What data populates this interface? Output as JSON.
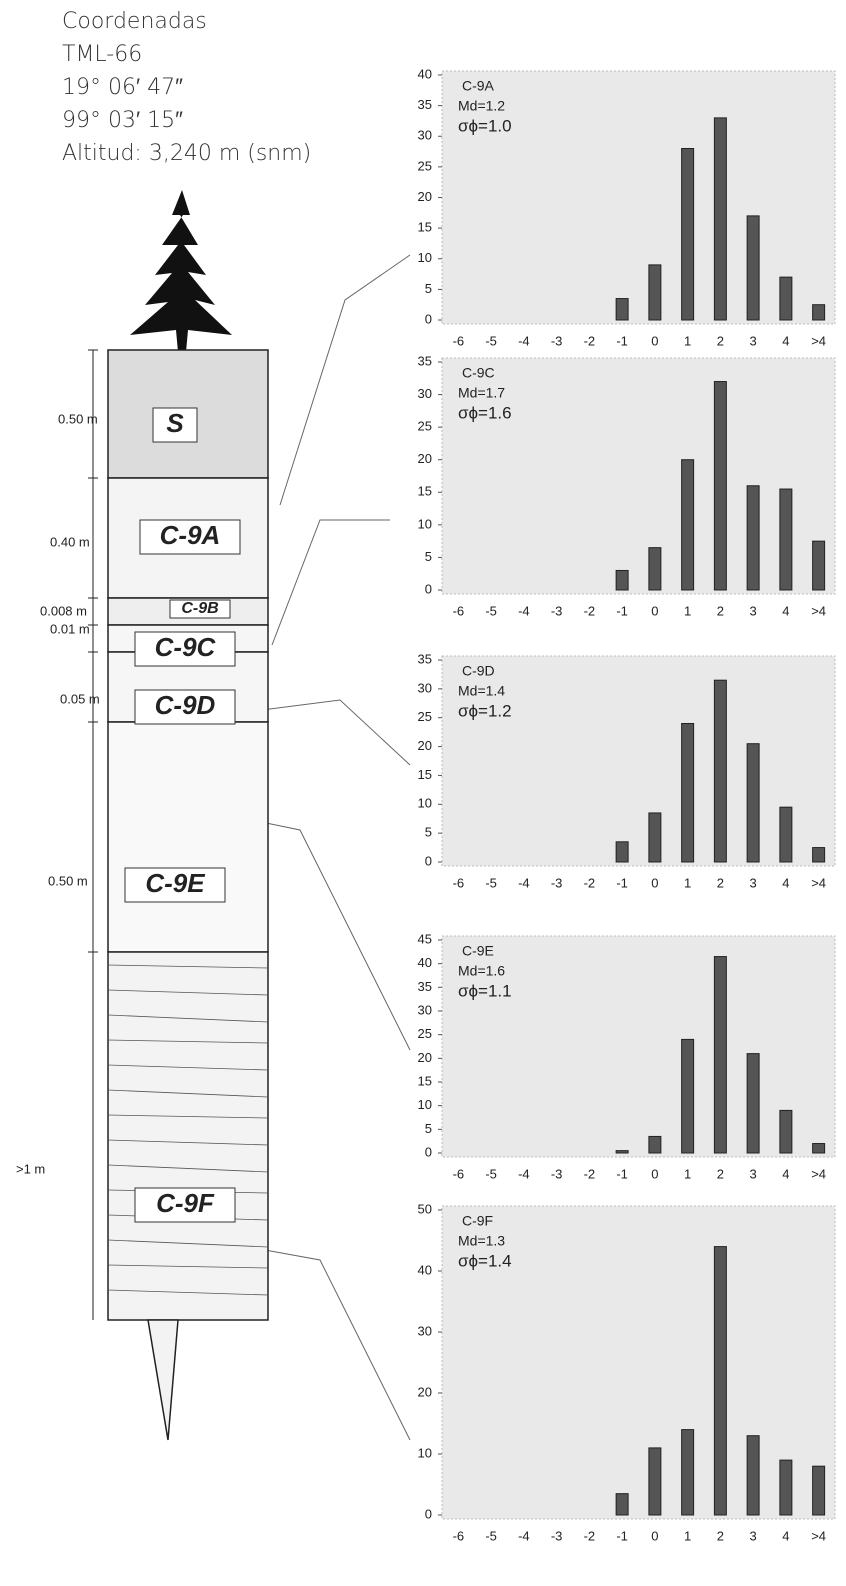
{
  "header": {
    "lines": [
      "Coordenadas",
      "TML-66",
      "19° 06′ 47″",
      "99° 03′ 15″",
      "Altitud: 3,240 m (snm)"
    ]
  },
  "column": {
    "layers": [
      {
        "label": "S",
        "thickness": "0.50 m"
      },
      {
        "label": "C-9A",
        "thickness": "0.40 m"
      },
      {
        "label": "C-9B",
        "thickness": "0.008 m"
      },
      {
        "label": "C-9C",
        "thickness": "0.01 m"
      },
      {
        "label": "C-9D",
        "thickness": "0.05 m"
      },
      {
        "label": "C-9E",
        "thickness": "0.50  m"
      },
      {
        "label": "C-9F",
        "thickness": ">1 m"
      }
    ]
  },
  "chart_data": [
    {
      "type": "bar",
      "title": "C-9A",
      "annotations": [
        "Md=1.2",
        "σϕ=1.0"
      ],
      "color": "#555555",
      "categories": [
        "-6",
        "-5",
        "-4",
        "-3",
        "-2",
        "-1",
        "0",
        "1",
        "2",
        "3",
        "4",
        ">4"
      ],
      "values": [
        0,
        0,
        0,
        0,
        0,
        3.5,
        9,
        28,
        33,
        17,
        7,
        2.5
      ],
      "ylim": [
        0,
        40
      ],
      "yticks": [
        0,
        5,
        10,
        15,
        20,
        25,
        30,
        35,
        40
      ]
    },
    {
      "type": "bar",
      "title": "C-9C",
      "annotations": [
        "Md=1.7",
        "σϕ=1.6"
      ],
      "color": "#555555",
      "categories": [
        "-6",
        "-5",
        "-4",
        "-3",
        "-2",
        "-1",
        "0",
        "1",
        "2",
        "3",
        "4",
        ">4"
      ],
      "values": [
        0,
        0,
        0,
        0,
        0,
        3,
        6.5,
        20,
        32,
        16,
        15.5,
        7.5
      ],
      "ylim": [
        0,
        35
      ],
      "yticks": [
        0,
        5,
        10,
        15,
        20,
        25,
        30,
        35
      ]
    },
    {
      "type": "bar",
      "title": "C-9D",
      "annotations": [
        "Md=1.4",
        "σϕ=1.2"
      ],
      "color": "#555555",
      "categories": [
        "-6",
        "-5",
        "-4",
        "-3",
        "-2",
        "-1",
        "0",
        "1",
        "2",
        "3",
        "4",
        ">4"
      ],
      "values": [
        0,
        0,
        0,
        0,
        0,
        3.5,
        8.5,
        24,
        31.5,
        20.5,
        9.5,
        2.5
      ],
      "ylim": [
        0,
        35
      ],
      "yticks": [
        0,
        5,
        10,
        15,
        20,
        25,
        30,
        35
      ]
    },
    {
      "type": "bar",
      "title": "C-9E",
      "annotations": [
        "Md=1.6",
        "σϕ=1.1"
      ],
      "color": "#555555",
      "categories": [
        "-6",
        "-5",
        "-4",
        "-3",
        "-2",
        "-1",
        "0",
        "1",
        "2",
        "3",
        "4",
        ">4"
      ],
      "values": [
        0,
        0,
        0,
        0,
        0,
        0.5,
        3.5,
        24,
        41.5,
        21,
        9,
        2
      ],
      "ylim": [
        0,
        45
      ],
      "yticks": [
        0,
        5,
        10,
        15,
        20,
        25,
        30,
        35,
        40,
        45
      ]
    },
    {
      "type": "bar",
      "title": "C-9F",
      "annotations": [
        "Md=1.3",
        "σϕ=1.4"
      ],
      "color": "#555555",
      "categories": [
        "-6",
        "-5",
        "-4",
        "-3",
        "-2",
        "-1",
        "0",
        "1",
        "2",
        "3",
        "4",
        ">4"
      ],
      "values": [
        0,
        0,
        0,
        0,
        0,
        3.5,
        11,
        14,
        44,
        13,
        9,
        8
      ],
      "ylim": [
        0,
        50
      ],
      "yticks": [
        0,
        10,
        20,
        30,
        40,
        50
      ]
    }
  ]
}
